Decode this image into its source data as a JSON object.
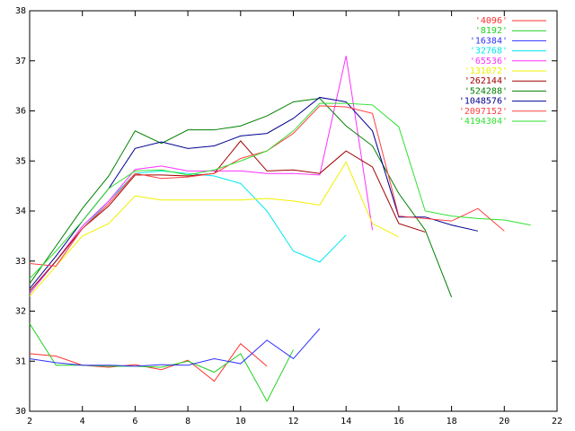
{
  "chart_data": {
    "type": "line",
    "xlim": [
      2,
      22
    ],
    "xticks": [
      2,
      4,
      6,
      8,
      10,
      12,
      14,
      16,
      18,
      20,
      22
    ],
    "ylim": [
      30,
      38
    ],
    "yticks": [
      30,
      31,
      32,
      33,
      34,
      35,
      36,
      37,
      38
    ],
    "legend": "top-right",
    "series": [
      {
        "name": "'4096'",
        "color": "#ff3030",
        "x": [
          2,
          3,
          4,
          5,
          6,
          7,
          8,
          9,
          10,
          11
        ],
        "values": [
          31.15,
          31.1,
          30.92,
          30.88,
          30.93,
          30.83,
          31.02,
          30.6,
          31.35,
          30.9
        ]
      },
      {
        "name": "'8192'",
        "color": "#20d020",
        "x": [
          2,
          3,
          4,
          5,
          6,
          7,
          8,
          9,
          10,
          11,
          12
        ],
        "values": [
          31.75,
          30.92,
          30.92,
          30.9,
          30.9,
          30.88,
          31.0,
          30.78,
          31.15,
          30.2,
          31.23
        ]
      },
      {
        "name": "'16384'",
        "color": "#3030ff",
        "x": [
          2,
          3,
          4,
          5,
          6,
          7,
          8,
          9,
          10,
          11,
          12,
          13
        ],
        "values": [
          31.05,
          30.97,
          30.92,
          30.92,
          30.9,
          30.93,
          30.92,
          31.05,
          30.95,
          31.42,
          31.05,
          31.65
        ]
      },
      {
        "name": "'32768'",
        "color": "#00e8f0",
        "x": [
          2,
          3,
          4,
          5,
          6,
          7,
          8,
          9,
          10,
          11,
          12,
          13,
          14
        ],
        "values": [
          32.35,
          33.0,
          33.65,
          34.2,
          34.75,
          34.8,
          34.75,
          34.7,
          34.55,
          34.0,
          33.2,
          32.98,
          33.52
        ]
      },
      {
        "name": "'65536'",
        "color": "#ff30ff",
        "x": [
          2,
          3,
          4,
          5,
          6,
          7,
          8,
          9,
          10,
          11,
          12,
          13,
          14,
          15
        ],
        "values": [
          32.35,
          33.0,
          33.7,
          34.2,
          34.83,
          34.9,
          34.8,
          34.8,
          34.8,
          34.75,
          34.75,
          34.72,
          37.1,
          33.62
        ]
      },
      {
        "name": "'131072'",
        "color": "#f0f000",
        "x": [
          2,
          3,
          4,
          5,
          6,
          7,
          8,
          9,
          10,
          11,
          12,
          13,
          14,
          15,
          16
        ],
        "values": [
          32.3,
          32.9,
          33.5,
          33.75,
          34.3,
          34.22,
          34.22,
          34.22,
          34.22,
          34.25,
          34.2,
          34.12,
          34.98,
          33.75,
          33.48
        ]
      },
      {
        "name": "'262144'",
        "color": "#a00000",
        "x": [
          2,
          3,
          4,
          5,
          6,
          7,
          8,
          9,
          10,
          11,
          12,
          13,
          14,
          15,
          16,
          17
        ],
        "values": [
          32.4,
          33.0,
          33.65,
          34.1,
          34.72,
          34.72,
          34.7,
          34.75,
          35.4,
          34.8,
          34.82,
          34.75,
          35.2,
          34.88,
          33.75,
          33.58
        ]
      },
      {
        "name": "'524288'",
        "color": "#008000",
        "x": [
          2,
          3,
          4,
          5,
          6,
          7,
          8,
          9,
          10,
          11,
          12,
          13,
          14,
          15,
          16,
          17,
          18
        ],
        "values": [
          32.55,
          33.3,
          34.05,
          34.7,
          35.6,
          35.35,
          35.62,
          35.62,
          35.7,
          35.9,
          36.18,
          36.25,
          35.7,
          35.3,
          34.35,
          33.62,
          32.28
        ]
      },
      {
        "name": "'1048576'",
        "color": "#000090",
        "x": [
          2,
          3,
          4,
          5,
          6,
          7,
          8,
          9,
          10,
          11,
          12,
          13,
          14,
          15,
          16,
          17,
          18,
          19
        ],
        "values": [
          32.45,
          33.1,
          33.8,
          34.45,
          35.25,
          35.38,
          35.25,
          35.3,
          35.5,
          35.55,
          35.85,
          36.27,
          36.18,
          35.6,
          33.88,
          33.88,
          33.72,
          33.6
        ]
      },
      {
        "name": "'2097152'",
        "color": "#ff4040",
        "x": [
          2,
          3,
          4,
          5,
          6,
          7,
          8,
          9,
          10,
          11,
          12,
          13,
          14,
          15,
          16,
          17,
          18,
          19,
          20
        ],
        "values": [
          32.95,
          32.9,
          33.65,
          34.15,
          34.75,
          34.65,
          34.68,
          34.75,
          35.05,
          35.2,
          35.55,
          36.1,
          36.08,
          35.95,
          33.9,
          33.85,
          33.8,
          34.05,
          33.6
        ]
      },
      {
        "name": "'4194304'",
        "color": "#30e030",
        "x": [
          2,
          3,
          4,
          5,
          6,
          7,
          8,
          9,
          10,
          11,
          12,
          13,
          14,
          15,
          16,
          17,
          18,
          19,
          20,
          21
        ],
        "values": [
          32.65,
          33.2,
          33.8,
          34.45,
          34.8,
          34.82,
          34.72,
          34.82,
          35.0,
          35.2,
          35.6,
          36.15,
          36.15,
          36.12,
          35.68,
          34.0,
          33.9,
          33.85,
          33.82,
          33.72
        ]
      }
    ]
  }
}
